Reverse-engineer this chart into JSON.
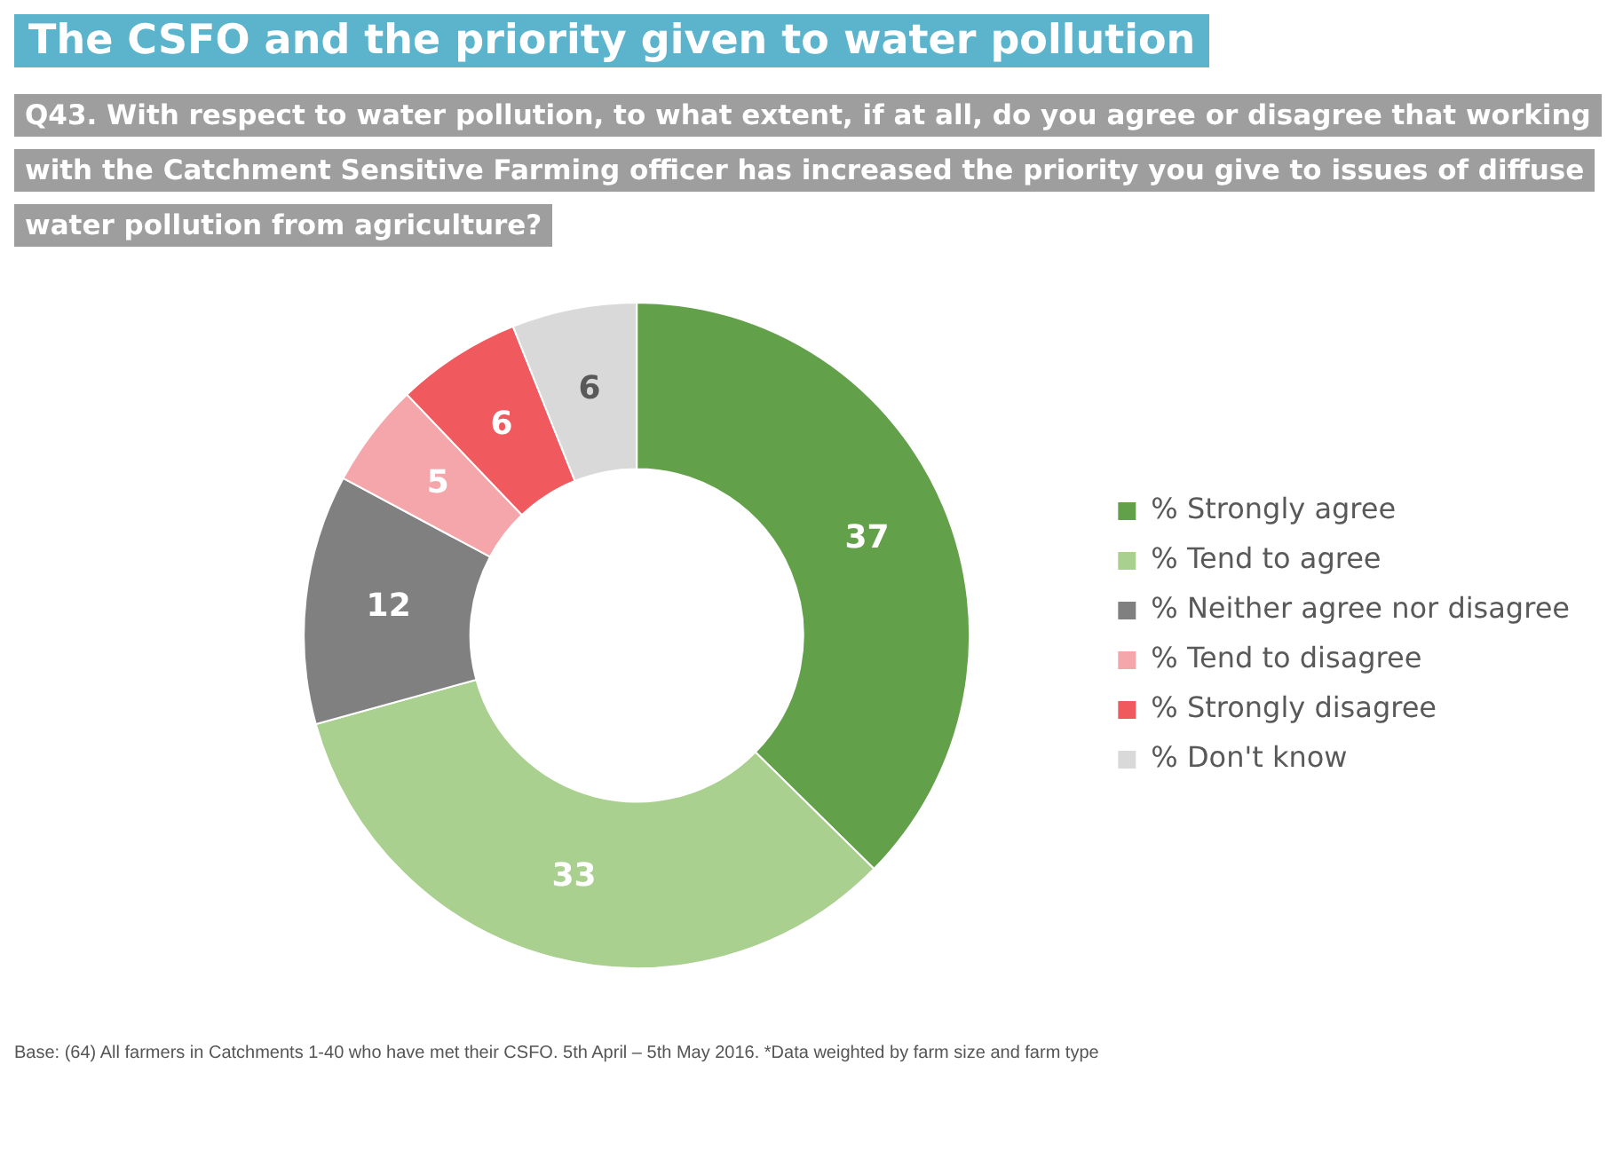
{
  "chart_data": {
    "type": "donut",
    "title": "The CSFO and the priority given to water pollution",
    "subtitle": "Q43. With respect to water pollution, to what extent, if at all, do you agree or disagree that working with the Catchment Sensitive Farming officer has increased the priority you give to issues of diffuse water pollution from agriculture?",
    "categories": [
      "% Strongly agree",
      "% Tend to agree",
      "% Neither agree nor disagree",
      "% Tend to disagree",
      "% Strongly disagree",
      "% Don't know"
    ],
    "values": [
      37,
      33,
      12,
      5,
      6,
      6
    ],
    "colors": [
      "#62a04a",
      "#a9d08e",
      "#808080",
      "#f4a6aa",
      "#f05a5e",
      "#d9d9d9"
    ],
    "data_labels": true,
    "legend": "right",
    "annotations": [
      "Base: (64) All farmers in Catchments 1-40 who have met their CSFO. 5th April – 5th May 2016. *Data weighted by farm size and farm type"
    ]
  }
}
